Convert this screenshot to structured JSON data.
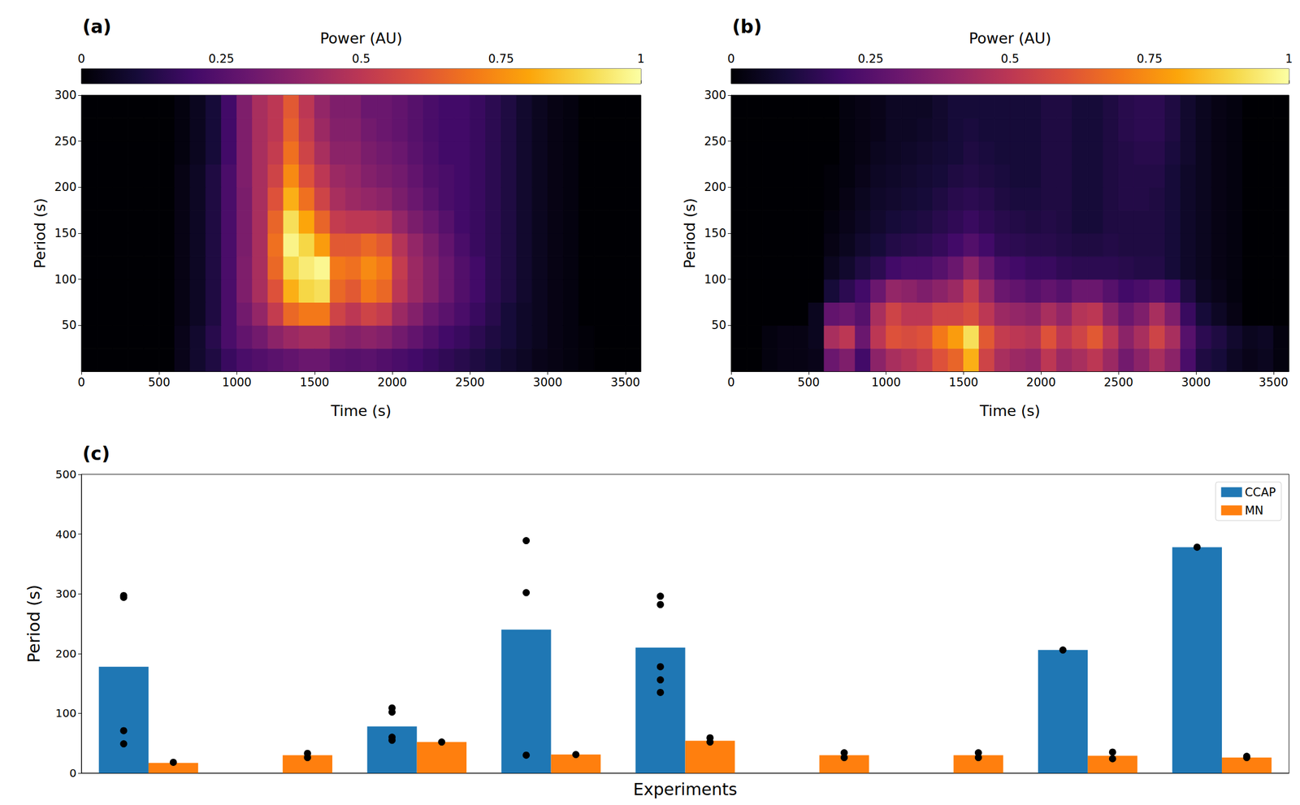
{
  "chart_data": [
    {
      "type": "heatmap",
      "title": "(a)",
      "x_label": "Time (s)",
      "y_label": "Period (s)",
      "xlim": [
        0,
        3600
      ],
      "xticks": [
        0,
        500,
        1000,
        1500,
        2000,
        2500,
        3000,
        3500
      ],
      "ylim": [
        0,
        300
      ],
      "yticks": [
        50,
        100,
        150,
        200,
        250,
        300
      ],
      "time_bins": [
        0,
        100,
        200,
        300,
        400,
        500,
        600,
        700,
        800,
        900,
        1000,
        1100,
        1200,
        1300,
        1400,
        1500,
        1600,
        1700,
        1800,
        1900,
        2000,
        2100,
        2200,
        2300,
        2400,
        2500,
        2600,
        2700,
        2800,
        2900,
        3000,
        3100,
        3200,
        3300,
        3400,
        3500,
        3600
      ],
      "period_bins": [
        0,
        25,
        50,
        75,
        100,
        125,
        150,
        175,
        200,
        225,
        250,
        275,
        300
      ],
      "power": [
        [
          0,
          0,
          0,
          0,
          0,
          0,
          0.04,
          0.08,
          0.12,
          0.18,
          0.22,
          0.24,
          0.26,
          0.28,
          0.3,
          0.3,
          0.26,
          0.25,
          0.26,
          0.24,
          0.22,
          0.2,
          0.18,
          0.16,
          0.14,
          0.12,
          0.1,
          0.08,
          0.06,
          0.04,
          0.03,
          0.02,
          0.01,
          0,
          0,
          0
        ],
        [
          0,
          0,
          0,
          0,
          0,
          0,
          0.04,
          0.08,
          0.14,
          0.22,
          0.28,
          0.32,
          0.38,
          0.42,
          0.44,
          0.44,
          0.38,
          0.36,
          0.38,
          0.36,
          0.32,
          0.28,
          0.24,
          0.2,
          0.18,
          0.15,
          0.12,
          0.1,
          0.07,
          0.05,
          0.03,
          0.02,
          0.01,
          0,
          0,
          0
        ],
        [
          0,
          0,
          0,
          0,
          0,
          0,
          0.03,
          0.06,
          0.12,
          0.22,
          0.32,
          0.4,
          0.52,
          0.66,
          0.7,
          0.7,
          0.55,
          0.5,
          0.55,
          0.52,
          0.42,
          0.36,
          0.3,
          0.26,
          0.22,
          0.18,
          0.14,
          0.1,
          0.07,
          0.05,
          0.03,
          0.02,
          0,
          0,
          0,
          0
        ],
        [
          0,
          0,
          0,
          0,
          0,
          0,
          0.03,
          0.06,
          0.12,
          0.22,
          0.35,
          0.45,
          0.6,
          0.82,
          0.9,
          0.92,
          0.66,
          0.62,
          0.7,
          0.66,
          0.5,
          0.42,
          0.36,
          0.3,
          0.24,
          0.2,
          0.15,
          0.12,
          0.08,
          0.05,
          0.03,
          0.02,
          0,
          0,
          0,
          0
        ],
        [
          0,
          0,
          0,
          0,
          0,
          0,
          0.03,
          0.06,
          0.12,
          0.22,
          0.35,
          0.45,
          0.66,
          0.9,
          0.95,
          0.98,
          0.7,
          0.68,
          0.74,
          0.7,
          0.52,
          0.42,
          0.36,
          0.3,
          0.24,
          0.2,
          0.15,
          0.12,
          0.08,
          0.05,
          0.03,
          0.02,
          0,
          0,
          0,
          0
        ],
        [
          0,
          0,
          0,
          0,
          0,
          0,
          0.03,
          0.06,
          0.12,
          0.22,
          0.34,
          0.45,
          0.68,
          0.97,
          0.9,
          0.78,
          0.62,
          0.62,
          0.66,
          0.62,
          0.48,
          0.4,
          0.34,
          0.28,
          0.22,
          0.18,
          0.15,
          0.12,
          0.08,
          0.05,
          0.03,
          0.02,
          0,
          0,
          0,
          0
        ],
        [
          0,
          0,
          0,
          0,
          0,
          0,
          0.03,
          0.06,
          0.12,
          0.22,
          0.34,
          0.45,
          0.65,
          0.92,
          0.8,
          0.65,
          0.52,
          0.5,
          0.5,
          0.48,
          0.4,
          0.34,
          0.3,
          0.25,
          0.2,
          0.18,
          0.15,
          0.12,
          0.08,
          0.05,
          0.03,
          0.02,
          0,
          0,
          0,
          0
        ],
        [
          0,
          0,
          0,
          0,
          0,
          0,
          0.03,
          0.06,
          0.12,
          0.22,
          0.34,
          0.45,
          0.6,
          0.82,
          0.68,
          0.55,
          0.45,
          0.42,
          0.4,
          0.38,
          0.34,
          0.3,
          0.26,
          0.22,
          0.2,
          0.18,
          0.15,
          0.12,
          0.08,
          0.05,
          0.03,
          0.02,
          0,
          0,
          0,
          0
        ],
        [
          0,
          0,
          0,
          0,
          0,
          0,
          0.03,
          0.06,
          0.12,
          0.22,
          0.35,
          0.45,
          0.55,
          0.74,
          0.6,
          0.5,
          0.42,
          0.4,
          0.36,
          0.34,
          0.32,
          0.28,
          0.24,
          0.22,
          0.2,
          0.18,
          0.15,
          0.12,
          0.08,
          0.05,
          0.03,
          0.02,
          0,
          0,
          0,
          0
        ],
        [
          0,
          0,
          0,
          0,
          0,
          0,
          0.02,
          0.05,
          0.1,
          0.2,
          0.35,
          0.45,
          0.52,
          0.68,
          0.55,
          0.45,
          0.38,
          0.38,
          0.34,
          0.32,
          0.3,
          0.26,
          0.23,
          0.2,
          0.2,
          0.18,
          0.15,
          0.12,
          0.08,
          0.05,
          0.03,
          0.02,
          0,
          0,
          0,
          0
        ],
        [
          0,
          0,
          0,
          0,
          0,
          0,
          0.02,
          0.05,
          0.1,
          0.2,
          0.35,
          0.45,
          0.5,
          0.64,
          0.52,
          0.42,
          0.36,
          0.36,
          0.32,
          0.3,
          0.28,
          0.25,
          0.22,
          0.2,
          0.2,
          0.18,
          0.15,
          0.12,
          0.08,
          0.05,
          0.03,
          0.02,
          0,
          0,
          0,
          0
        ],
        [
          0,
          0,
          0,
          0,
          0,
          0,
          0.02,
          0.05,
          0.1,
          0.2,
          0.35,
          0.45,
          0.5,
          0.62,
          0.5,
          0.4,
          0.35,
          0.35,
          0.3,
          0.3,
          0.28,
          0.25,
          0.22,
          0.2,
          0.2,
          0.18,
          0.15,
          0.12,
          0.08,
          0.05,
          0.03,
          0.02,
          0,
          0,
          0,
          0
        ]
      ],
      "colorbar_label": "Power (AU)",
      "colorbar_range": [
        0,
        1
      ],
      "colorbar_ticks": [
        0,
        0.25,
        0.5,
        0.75,
        1
      ]
    },
    {
      "type": "heatmap",
      "title": "(b)",
      "x_label": "Time (s)",
      "y_label": "Period (s)",
      "xlim": [
        0,
        3600
      ],
      "xticks": [
        0,
        500,
        1000,
        1500,
        2000,
        2500,
        3000,
        3500
      ],
      "ylim": [
        0,
        300
      ],
      "yticks": [
        50,
        100,
        150,
        200,
        250,
        300
      ],
      "time_bins": [
        0,
        100,
        200,
        300,
        400,
        500,
        600,
        700,
        800,
        900,
        1000,
        1100,
        1200,
        1300,
        1400,
        1500,
        1600,
        1700,
        1800,
        1900,
        2000,
        2100,
        2200,
        2300,
        2400,
        2500,
        2600,
        2700,
        2800,
        2900,
        3000,
        3100,
        3200,
        3300,
        3400,
        3500,
        3600
      ],
      "period_bins": [
        0,
        25,
        50,
        75,
        100,
        125,
        150,
        175,
        200,
        225,
        250,
        275,
        300
      ],
      "power": [
        [
          0,
          0,
          0.02,
          0.03,
          0.03,
          0.04,
          0.3,
          0.35,
          0.2,
          0.38,
          0.45,
          0.48,
          0.52,
          0.6,
          0.65,
          0.82,
          0.55,
          0.45,
          0.42,
          0.4,
          0.5,
          0.42,
          0.45,
          0.5,
          0.42,
          0.32,
          0.38,
          0.45,
          0.38,
          0.22,
          0.12,
          0.1,
          0.06,
          0.04,
          0.05,
          0.02
        ],
        [
          0,
          0,
          0.02,
          0.03,
          0.03,
          0.05,
          0.45,
          0.5,
          0.3,
          0.5,
          0.6,
          0.58,
          0.6,
          0.7,
          0.78,
          0.92,
          0.62,
          0.52,
          0.5,
          0.48,
          0.6,
          0.5,
          0.55,
          0.62,
          0.5,
          0.38,
          0.45,
          0.55,
          0.45,
          0.25,
          0.15,
          0.12,
          0.08,
          0.05,
          0.06,
          0.02
        ],
        [
          0,
          0,
          0,
          0,
          0,
          0.05,
          0.28,
          0.3,
          0.25,
          0.45,
          0.55,
          0.5,
          0.5,
          0.55,
          0.55,
          0.58,
          0.5,
          0.42,
          0.4,
          0.38,
          0.45,
          0.4,
          0.48,
          0.5,
          0.38,
          0.3,
          0.35,
          0.45,
          0.35,
          0.18,
          0.1,
          0.06,
          0.03,
          0,
          0,
          0
        ],
        [
          0,
          0,
          0,
          0,
          0,
          0,
          0.1,
          0.15,
          0.2,
          0.3,
          0.4,
          0.38,
          0.35,
          0.38,
          0.42,
          0.52,
          0.4,
          0.3,
          0.28,
          0.25,
          0.28,
          0.25,
          0.3,
          0.3,
          0.25,
          0.2,
          0.22,
          0.25,
          0.2,
          0.12,
          0.06,
          0.04,
          0.02,
          0,
          0,
          0
        ],
        [
          0,
          0,
          0,
          0,
          0,
          0,
          0.05,
          0.08,
          0.12,
          0.15,
          0.2,
          0.22,
          0.22,
          0.25,
          0.3,
          0.38,
          0.3,
          0.22,
          0.2,
          0.18,
          0.18,
          0.16,
          0.15,
          0.15,
          0.15,
          0.14,
          0.13,
          0.13,
          0.1,
          0.07,
          0.05,
          0.03,
          0.02,
          0,
          0,
          0
        ],
        [
          0,
          0,
          0,
          0,
          0,
          0,
          0.03,
          0.05,
          0.08,
          0.1,
          0.13,
          0.14,
          0.15,
          0.17,
          0.2,
          0.24,
          0.2,
          0.16,
          0.15,
          0.14,
          0.14,
          0.13,
          0.12,
          0.12,
          0.13,
          0.12,
          0.12,
          0.12,
          0.1,
          0.07,
          0.05,
          0.03,
          0.02,
          0,
          0,
          0
        ],
        [
          0,
          0,
          0,
          0,
          0,
          0,
          0.02,
          0.04,
          0.06,
          0.08,
          0.1,
          0.11,
          0.12,
          0.14,
          0.16,
          0.18,
          0.16,
          0.14,
          0.13,
          0.12,
          0.13,
          0.12,
          0.1,
          0.1,
          0.12,
          0.12,
          0.12,
          0.12,
          0.1,
          0.07,
          0.05,
          0.03,
          0.02,
          0,
          0,
          0
        ],
        [
          0,
          0,
          0,
          0,
          0,
          0,
          0.01,
          0.03,
          0.05,
          0.07,
          0.08,
          0.09,
          0.1,
          0.12,
          0.14,
          0.15,
          0.14,
          0.12,
          0.11,
          0.11,
          0.12,
          0.12,
          0.1,
          0.1,
          0.12,
          0.13,
          0.13,
          0.12,
          0.1,
          0.07,
          0.05,
          0.03,
          0.02,
          0,
          0,
          0
        ],
        [
          0,
          0,
          0,
          0,
          0,
          0,
          0.01,
          0.02,
          0.04,
          0.06,
          0.07,
          0.08,
          0.09,
          0.1,
          0.12,
          0.13,
          0.12,
          0.11,
          0.1,
          0.1,
          0.12,
          0.12,
          0.1,
          0.1,
          0.12,
          0.13,
          0.13,
          0.13,
          0.1,
          0.07,
          0.05,
          0.03,
          0.02,
          0,
          0,
          0
        ],
        [
          0,
          0,
          0,
          0,
          0,
          0,
          0,
          0.02,
          0.03,
          0.05,
          0.06,
          0.07,
          0.08,
          0.09,
          0.1,
          0.12,
          0.11,
          0.1,
          0.1,
          0.1,
          0.12,
          0.12,
          0.1,
          0.1,
          0.12,
          0.13,
          0.14,
          0.14,
          0.11,
          0.08,
          0.05,
          0.03,
          0.02,
          0,
          0,
          0
        ],
        [
          0,
          0,
          0,
          0,
          0,
          0,
          0,
          0.02,
          0.03,
          0.04,
          0.06,
          0.06,
          0.07,
          0.08,
          0.1,
          0.11,
          0.1,
          0.1,
          0.1,
          0.1,
          0.12,
          0.12,
          0.1,
          0.1,
          0.12,
          0.14,
          0.15,
          0.15,
          0.12,
          0.08,
          0.05,
          0.03,
          0.02,
          0,
          0,
          0
        ],
        [
          0,
          0,
          0,
          0,
          0,
          0,
          0,
          0.02,
          0.03,
          0.04,
          0.06,
          0.06,
          0.06,
          0.08,
          0.1,
          0.1,
          0.1,
          0.1,
          0.1,
          0.1,
          0.12,
          0.12,
          0.1,
          0.1,
          0.12,
          0.14,
          0.15,
          0.15,
          0.12,
          0.08,
          0.05,
          0.03,
          0.02,
          0,
          0,
          0
        ]
      ],
      "colorbar_label": "Power (AU)",
      "colorbar_range": [
        0,
        1
      ],
      "colorbar_ticks": [
        0,
        0.25,
        0.5,
        0.75,
        1
      ]
    },
    {
      "type": "bar",
      "title": "(c)",
      "x_label": "Experiments",
      "y_label": "Period (s)",
      "categories": [
        null,
        null,
        null,
        null,
        null,
        null,
        null,
        null,
        null
      ],
      "ylim": [
        0,
        500
      ],
      "yticks": [
        0,
        100,
        200,
        300,
        400,
        500
      ],
      "grid": false,
      "legend": "upper right",
      "series": [
        {
          "name": "CCAP",
          "color": "#1f77b4",
          "values": [
            178,
            null,
            78,
            240,
            210,
            null,
            null,
            206,
            378
          ],
          "points": [
            [
              297,
              294,
              71,
              49
            ],
            [],
            [
              109,
              102,
              60,
              55
            ],
            [
              389,
              302,
              30
            ],
            [
              296,
              282,
              178,
              156,
              135
            ],
            [],
            [],
            [
              206
            ],
            [
              378
            ]
          ]
        },
        {
          "name": "MN",
          "color": "#ff7f0e",
          "values": [
            17,
            30,
            52,
            31,
            54,
            30,
            30,
            29,
            26
          ],
          "points": [
            [
              18
            ],
            [
              33,
              26
            ],
            [
              52
            ],
            [
              31
            ],
            [
              59,
              52
            ],
            [
              34,
              26
            ],
            [
              34,
              26
            ],
            [
              35,
              24
            ],
            [
              28,
              26
            ]
          ]
        }
      ]
    }
  ]
}
